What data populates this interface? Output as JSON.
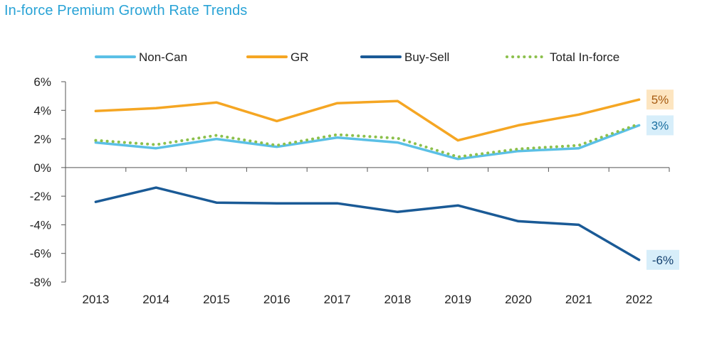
{
  "title": "In-force Premium Growth Rate Trends",
  "chart_data": {
    "type": "line",
    "title": "In-force Premium Growth Rate Trends",
    "xlabel": "",
    "ylabel": "",
    "x": [
      "2013",
      "2014",
      "2015",
      "2016",
      "2017",
      "2018",
      "2019",
      "2020",
      "2021",
      "2022"
    ],
    "ylim": [
      -8,
      6
    ],
    "yticks": [
      6,
      4,
      2,
      0,
      -2,
      -4,
      -6,
      -8
    ],
    "ytick_labels": [
      "6%",
      "4%",
      "2%",
      "0%",
      "-2%",
      "-4%",
      "-6%",
      "-8%"
    ],
    "grid": false,
    "legend_position": "top",
    "series": [
      {
        "name": "Non-Can",
        "color": "#5bc0e6",
        "style": "solid",
        "values": [
          1.75,
          1.35,
          2.0,
          1.45,
          2.1,
          1.75,
          0.6,
          1.15,
          1.35,
          2.95
        ]
      },
      {
        "name": "GR",
        "color": "#f5a623",
        "style": "solid",
        "values": [
          3.95,
          4.15,
          4.55,
          3.25,
          4.5,
          4.65,
          1.9,
          2.95,
          3.7,
          4.75
        ]
      },
      {
        "name": "Buy-Sell",
        "color": "#1a5a96",
        "style": "solid",
        "values": [
          -2.4,
          -1.4,
          -2.45,
          -2.5,
          -2.5,
          -3.1,
          -2.65,
          -3.75,
          -4.0,
          -6.45
        ]
      },
      {
        "name": "Total In-force",
        "color": "#8cc04c",
        "style": "dotted",
        "values": [
          1.9,
          1.6,
          2.25,
          1.55,
          2.3,
          2.05,
          0.75,
          1.3,
          1.55,
          3.05
        ]
      }
    ],
    "annotations": [
      {
        "text": "5%",
        "series": "GR",
        "x": "2022",
        "bg": "#fde5c0",
        "fg": "#a65a10"
      },
      {
        "text": "3%",
        "series": "Non-Can",
        "x": "2022",
        "bg": "#d7eefa",
        "fg": "#1a6fa0"
      },
      {
        "text": "-6%",
        "series": "Buy-Sell",
        "x": "2022",
        "bg": "#d7eefa",
        "fg": "#123f6e"
      }
    ]
  }
}
